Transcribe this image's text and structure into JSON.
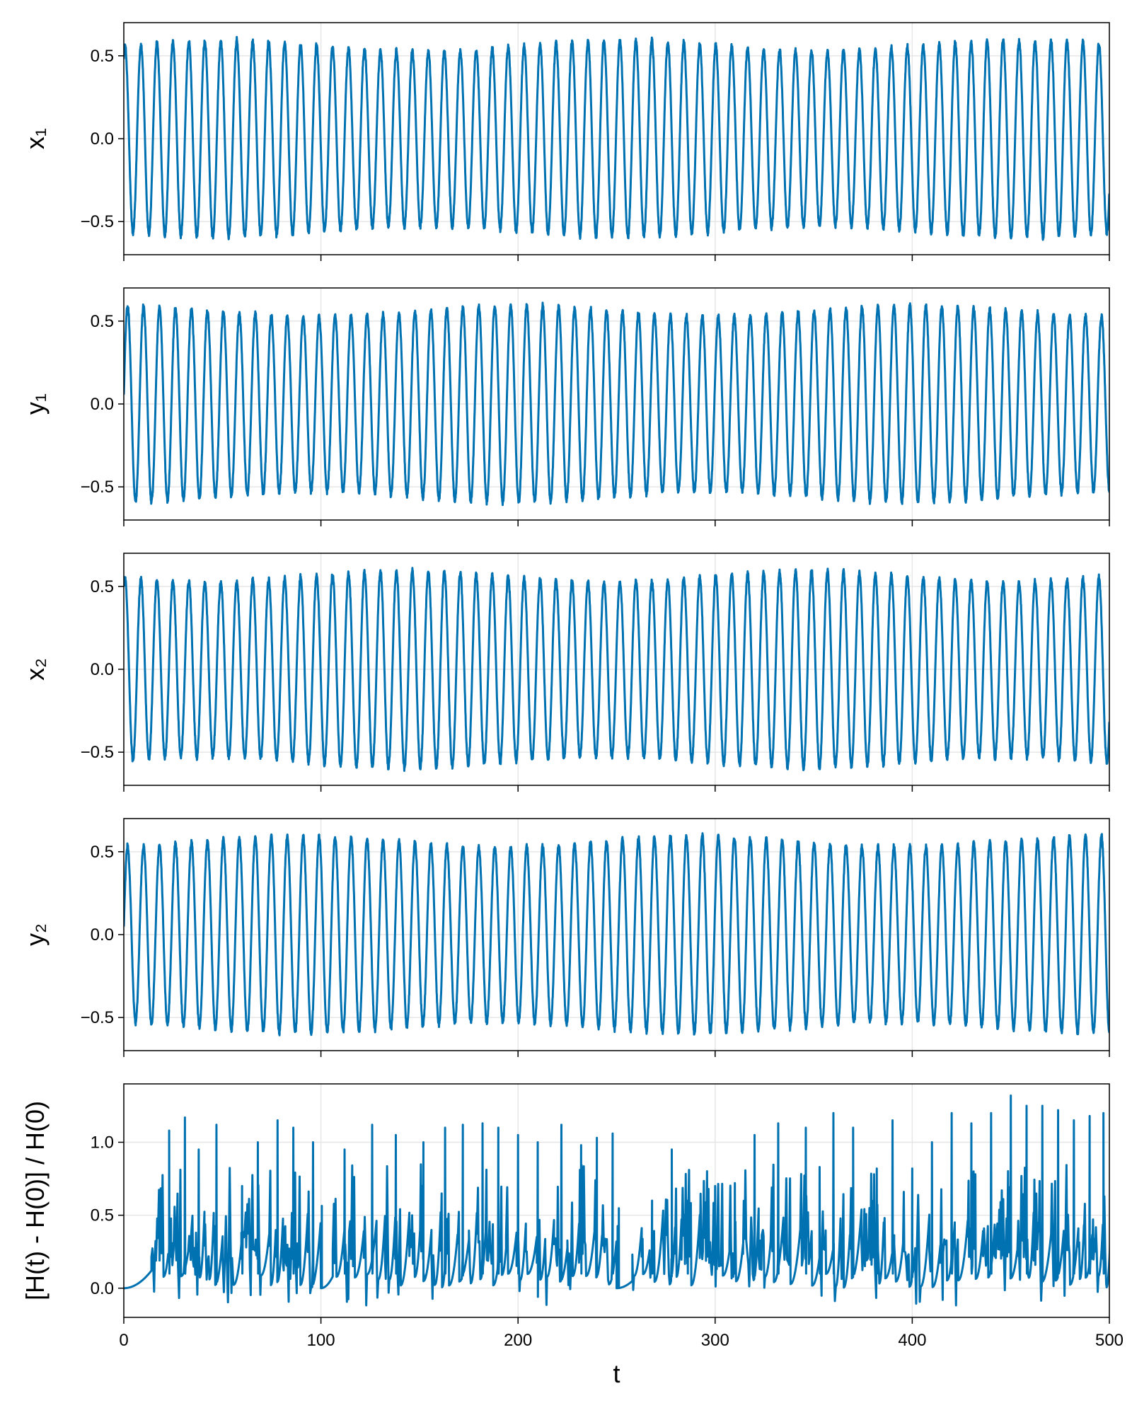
{
  "chart_data": {
    "type": "line",
    "layout": "stacked-subplots-shared-x",
    "xlabel": "t",
    "xlim": [
      0,
      500
    ],
    "xticks": [
      0,
      100,
      200,
      300,
      400,
      500
    ],
    "grid": true,
    "line_color": "#0072b2",
    "panels": [
      {
        "ylabel": "x₁",
        "ylim": [
          -0.7,
          0.7
        ],
        "yticks": [
          -0.5,
          0.0,
          0.5
        ],
        "ytick_labels": [
          "−0.5",
          "0.0",
          "0.5"
        ],
        "series": [
          {
            "shape": "oscillation",
            "amplitude": 0.56,
            "amplitude_range": [
              0.5,
              0.63
            ],
            "period": 8.1,
            "start_value": 0.5,
            "end_value": -0.4,
            "cycles_approx": 62
          }
        ]
      },
      {
        "ylabel": "y₁",
        "ylim": [
          -0.7,
          0.7
        ],
        "yticks": [
          -0.5,
          0.0,
          0.5
        ],
        "ytick_labels": [
          "−0.5",
          "0.0",
          "0.5"
        ],
        "series": [
          {
            "shape": "oscillation",
            "amplitude": 0.56,
            "amplitude_range": [
              0.5,
              0.63
            ],
            "period": 8.1,
            "start_value": 0.05,
            "end_value": -0.58,
            "cycles_approx": 62
          }
        ]
      },
      {
        "ylabel": "x₂",
        "ylim": [
          -0.7,
          0.7
        ],
        "yticks": [
          -0.5,
          0.0,
          0.5
        ],
        "ytick_labels": [
          "−0.5",
          "0.0",
          "0.5"
        ],
        "series": [
          {
            "shape": "oscillation",
            "amplitude": 0.56,
            "amplitude_range": [
              0.5,
              0.63
            ],
            "period": 8.1,
            "start_value": 0.5,
            "end_value": -0.4,
            "cycles_approx": 62
          }
        ]
      },
      {
        "ylabel": "y₂",
        "ylim": [
          -0.7,
          0.7
        ],
        "yticks": [
          -0.5,
          0.0,
          0.5
        ],
        "ytick_labels": [
          "−0.5",
          "0.0",
          "0.5"
        ],
        "series": [
          {
            "shape": "oscillation",
            "amplitude": 0.56,
            "amplitude_range": [
              0.5,
              0.63
            ],
            "period": 8.1,
            "start_value": 0.05,
            "end_value": -0.58,
            "cycles_approx": 62
          }
        ]
      },
      {
        "ylabel": "[H(t) - H(0)] / H(0)",
        "ylim": [
          -0.2,
          1.4
        ],
        "yticks": [
          0.0,
          0.5,
          1.0
        ],
        "ytick_labels": [
          "0.0",
          "0.5",
          "1.0"
        ],
        "series": [
          {
            "shape": "relative-energy-error-bursts",
            "quiet_ramps": [
              [
                0,
                14,
                0.0,
                0.12
              ],
              [
                100,
                106,
                0.0,
                0.08
              ],
              [
                250,
                258,
                0.0,
                0.05
              ]
            ],
            "noisy_intervals": [
              [
                14,
                100
              ],
              [
                106,
                250
              ],
              [
                258,
                500
              ]
            ],
            "noise_range": [
              -0.12,
              0.85
            ],
            "spikes": [
              [
                23,
                1.08
              ],
              [
                31,
                1.17
              ],
              [
                38,
                0.95
              ],
              [
                47,
                1.12
              ],
              [
                60,
                0.7
              ],
              [
                68,
                1.0
              ],
              [
                78,
                1.15
              ],
              [
                86,
                1.1
              ],
              [
                96,
                1.0
              ],
              [
                112,
                0.95
              ],
              [
                126,
                1.12
              ],
              [
                138,
                1.05
              ],
              [
                152,
                1.0
              ],
              [
                163,
                1.1
              ],
              [
                172,
                1.12
              ],
              [
                182,
                1.13
              ],
              [
                190,
                1.1
              ],
              [
                200,
                1.05
              ],
              [
                210,
                1.0
              ],
              [
                222,
                1.12
              ],
              [
                232,
                0.98
              ],
              [
                240,
                1.03
              ],
              [
                248,
                1.06
              ],
              [
                268,
                0.6
              ],
              [
                278,
                0.95
              ],
              [
                286,
                0.6
              ],
              [
                300,
                0.7
              ],
              [
                310,
                0.72
              ],
              [
                320,
                1.05
              ],
              [
                332,
                1.13
              ],
              [
                346,
                1.1
              ],
              [
                353,
                0.83
              ],
              [
                360,
                1.2
              ],
              [
                370,
                1.1
              ],
              [
                382,
                0.82
              ],
              [
                390,
                1.15
              ],
              [
                400,
                0.82
              ],
              [
                410,
                1.0
              ],
              [
                420,
                1.2
              ],
              [
                430,
                1.13
              ],
              [
                440,
                1.2
              ],
              [
                450,
                1.32
              ],
              [
                458,
                1.25
              ],
              [
                466,
                1.25
              ],
              [
                474,
                1.22
              ],
              [
                482,
                1.15
              ],
              [
                490,
                1.18
              ],
              [
                497,
                1.2
              ]
            ]
          }
        ]
      }
    ]
  }
}
